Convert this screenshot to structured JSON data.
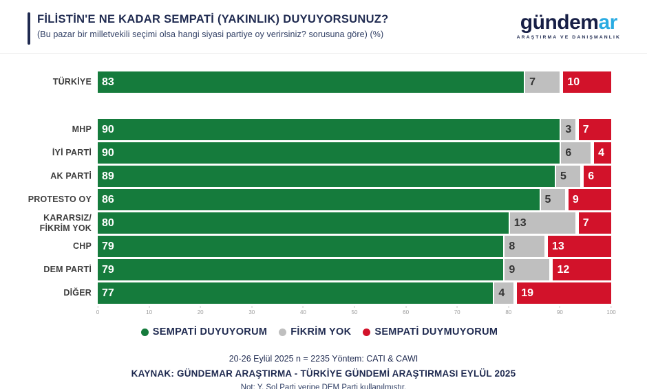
{
  "colors": {
    "green": "#157b3c",
    "gray": "#bfbfbf",
    "red": "#d2122a",
    "navy": "#1f2a50",
    "accent_blue": "#29abe2"
  },
  "logo": {
    "wordmark_primary": "gündem",
    "wordmark_accent": "ar",
    "tagline": "ARAŞTIRMA VE DANIŞMANLIK"
  },
  "chart_data": {
    "type": "bar",
    "orientation": "horizontal",
    "stacked": true,
    "title": "FİLİSTİN'E NE KADAR SEMPATİ (YAKINLIK) DUYUYORSUNUZ?",
    "subtitle": "(Bu pazar bir milletvekili seçimi olsa hangi siyasi partiye oy verirsiniz? sorusuna göre) (%)",
    "xlim": [
      0,
      100
    ],
    "x_ticks": [
      0,
      10,
      20,
      30,
      40,
      50,
      60,
      70,
      80,
      90,
      100
    ],
    "grid": false,
    "legend_position": "bottom",
    "series_names": [
      "SEMPATİ DUYUYORUM",
      "FİKRİM YOK",
      "SEMPATİ DUYMUYORUM"
    ],
    "legend": [
      {
        "label": "SEMPATİ DUYUYORUM",
        "color": "#157b3c"
      },
      {
        "label": "FİKRİM YOK",
        "color": "#bfbfbf"
      },
      {
        "label": "SEMPATİ DUYMUYORUM",
        "color": "#d2122a"
      }
    ],
    "rows": [
      {
        "label": "TÜRKİYE",
        "values": [
          83,
          7,
          10
        ],
        "group_break_after": true
      },
      {
        "label": "MHP",
        "values": [
          90,
          3,
          7
        ]
      },
      {
        "label": "İYİ PARTİ",
        "values": [
          90,
          6,
          4
        ]
      },
      {
        "label": "AK PARTİ",
        "values": [
          89,
          5,
          6
        ]
      },
      {
        "label": "PROTESTO OY",
        "values": [
          86,
          5,
          9
        ]
      },
      {
        "label": "KARARSIZ/\nFİKRİM YOK",
        "values": [
          80,
          13,
          7
        ]
      },
      {
        "label": "CHP",
        "values": [
          79,
          8,
          13
        ]
      },
      {
        "label": "DEM PARTİ",
        "values": [
          79,
          9,
          12
        ]
      },
      {
        "label": "DİĞER",
        "values": [
          77,
          4,
          19
        ]
      }
    ]
  },
  "footer": {
    "method_line": "20-26 Eylül 2025 n = 2235 Yöntem: CATI & CAWI",
    "source_line": "KAYNAK: GÜNDEMAR ARAŞTIRMA - TÜRKİYE GÜNDEMİ ARAŞTIRMASI EYLÜL 2025",
    "note_line": "Not: Y. Sol Parti yerine DEM Parti kullanılmıştır."
  }
}
